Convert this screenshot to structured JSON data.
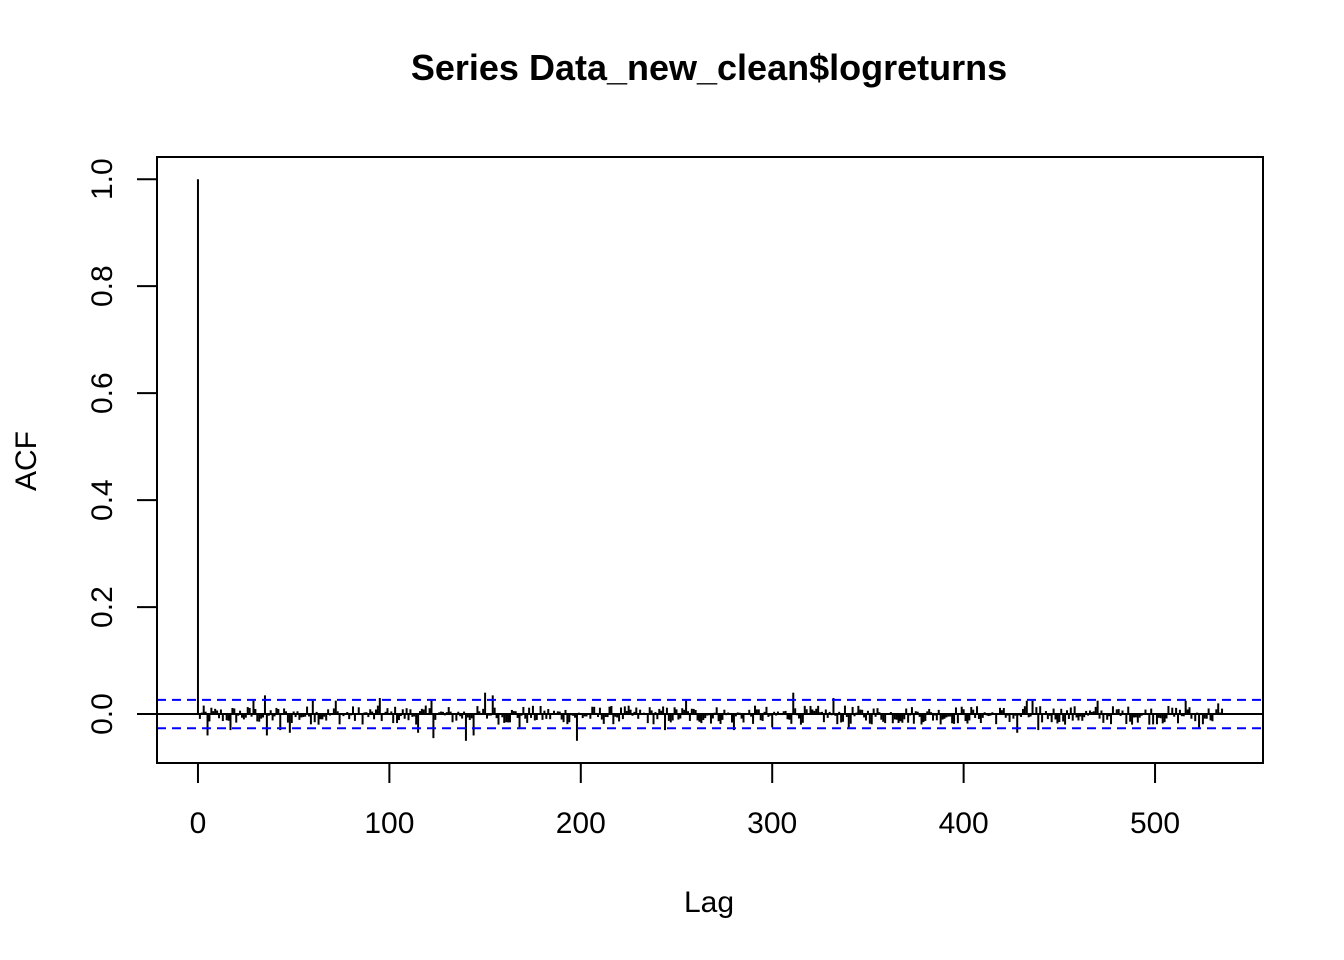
{
  "chart_data": {
    "type": "bar",
    "subtype": "acf-correlogram",
    "title": "Series  Data_new_clean$logreturns",
    "xlabel": "Lag",
    "ylabel": "ACF",
    "xlim": [
      -21.4,
      556.4
    ],
    "ylim": [
      -0.0915,
      1.0415
    ],
    "xticks": [
      0,
      100,
      200,
      300,
      400,
      500
    ],
    "xtick_labels": [
      "0",
      "100",
      "200",
      "300",
      "400",
      "500"
    ],
    "yticks": [
      0,
      0.2,
      0.4,
      0.6,
      0.8,
      1.0
    ],
    "ytick_labels": [
      "0.0",
      "0.2",
      "0.4",
      "0.6",
      "0.8",
      "1.0"
    ],
    "max_lag": 535,
    "lag0_value": 1.0,
    "confidence_bound": 0.0265,
    "bar_color": "#000000",
    "bound_color": "#0000ff",
    "grid": false,
    "selected_lags": [
      {
        "lag": 5,
        "acf": -0.04
      },
      {
        "lag": 17,
        "acf": -0.03
      },
      {
        "lag": 29,
        "acf": 0.025
      },
      {
        "lag": 35,
        "acf": 0.035
      },
      {
        "lag": 36,
        "acf": -0.04
      },
      {
        "lag": 43,
        "acf": -0.03
      },
      {
        "lag": 48,
        "acf": -0.035
      },
      {
        "lag": 60,
        "acf": 0.025
      },
      {
        "lag": 72,
        "acf": 0.025
      },
      {
        "lag": 95,
        "acf": 0.03
      },
      {
        "lag": 115,
        "acf": -0.035
      },
      {
        "lag": 122,
        "acf": 0.025
      },
      {
        "lag": 123,
        "acf": -0.045
      },
      {
        "lag": 140,
        "acf": -0.05
      },
      {
        "lag": 144,
        "acf": -0.04
      },
      {
        "lag": 150,
        "acf": 0.04
      },
      {
        "lag": 154,
        "acf": 0.035
      },
      {
        "lag": 168,
        "acf": -0.025
      },
      {
        "lag": 198,
        "acf": -0.05
      },
      {
        "lag": 244,
        "acf": -0.03
      },
      {
        "lag": 255,
        "acf": 0.025
      },
      {
        "lag": 280,
        "acf": -0.03
      },
      {
        "lag": 300,
        "acf": -0.025
      },
      {
        "lag": 311,
        "acf": 0.04
      },
      {
        "lag": 332,
        "acf": 0.03
      },
      {
        "lag": 340,
        "acf": -0.025
      },
      {
        "lag": 428,
        "acf": -0.035
      },
      {
        "lag": 433,
        "acf": 0.025
      },
      {
        "lag": 436,
        "acf": 0.025
      },
      {
        "lag": 439,
        "acf": -0.03
      },
      {
        "lag": 470,
        "acf": 0.025
      },
      {
        "lag": 516,
        "acf": 0.025
      },
      {
        "lag": 523,
        "acf": -0.025
      },
      {
        "lag": 533,
        "acf": 0.02
      }
    ]
  }
}
